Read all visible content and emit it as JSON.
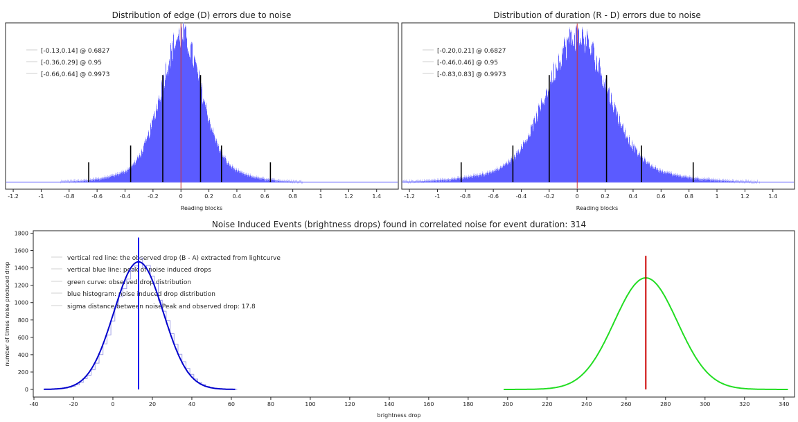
{
  "chart_data": [
    {
      "type": "histogram",
      "title": "Distribution of edge (D) errors due to noise",
      "xlabel": "Reading blocks",
      "ylabel": "",
      "xlim": [
        -1.25,
        1.55
      ],
      "xticks": [
        -1.2,
        -1,
        -0.8,
        -0.6,
        -0.4,
        -0.2,
        0,
        0.2,
        0.4,
        0.6,
        0.8,
        1,
        1.2,
        1.4
      ],
      "xtick_labels": [
        "-1.2",
        "-1",
        "-0.8",
        "-0.6",
        "-0.4",
        "-0.2",
        "0",
        "0.2",
        "0.4",
        "0.6",
        "0.8",
        "1",
        "1.2",
        "1.4"
      ],
      "histogram": {
        "center": 0.0,
        "sigma": 0.14,
        "color": "#5b5bff"
      },
      "zero_line": {
        "x": 0.0,
        "color": "#d03030"
      },
      "legend": [
        {
          "label": "[-0.13,0.14] @ 0.6827"
        },
        {
          "label": "[-0.36,0.29] @ 0.95"
        },
        {
          "label": "[-0.66,0.64] @ 0.9973"
        }
      ],
      "markers": [
        {
          "x": -0.13,
          "height": 0.7
        },
        {
          "x": 0.14,
          "height": 0.7
        },
        {
          "x": -0.36,
          "height": 0.24
        },
        {
          "x": 0.29,
          "height": 0.24
        },
        {
          "x": -0.66,
          "height": 0.13
        },
        {
          "x": 0.64,
          "height": 0.13
        }
      ]
    },
    {
      "type": "histogram",
      "title": "Distribution of duration (R - D) errors due to noise",
      "xlabel": "Reading blocks",
      "ylabel": "",
      "xlim": [
        -1.25,
        1.55
      ],
      "xticks": [
        -1.2,
        -1,
        -0.8,
        -0.6,
        -0.4,
        -0.2,
        0,
        0.2,
        0.4,
        0.6,
        0.8,
        1,
        1.2,
        1.4
      ],
      "xtick_labels": [
        "-1.2",
        "-1",
        "-0.8",
        "-0.6",
        "-0.4",
        "-0.2",
        "0",
        "0.2",
        "0.4",
        "0.6",
        "0.8",
        "1",
        "1.2",
        "1.4"
      ],
      "histogram": {
        "center": 0.0,
        "sigma": 0.21,
        "color": "#5b5bff"
      },
      "zero_line": {
        "x": 0.0,
        "color": "#d03030"
      },
      "legend": [
        {
          "label": "[-0.20,0.21] @ 0.6827"
        },
        {
          "label": "[-0.46,0.46] @ 0.95"
        },
        {
          "label": "[-0.83,0.83] @ 0.9973"
        }
      ],
      "markers": [
        {
          "x": -0.2,
          "height": 0.7
        },
        {
          "x": 0.21,
          "height": 0.7
        },
        {
          "x": -0.46,
          "height": 0.24
        },
        {
          "x": 0.46,
          "height": 0.24
        },
        {
          "x": -0.83,
          "height": 0.13
        },
        {
          "x": 0.83,
          "height": 0.13
        }
      ]
    },
    {
      "type": "line",
      "title": "Noise Induced Events (brightness drops) found in correlated noise for event duration: 314",
      "xlabel": "brightness drop",
      "ylabel": "number of times noise produced drop",
      "xlim": [
        -40,
        345
      ],
      "ylim": [
        -80,
        1820
      ],
      "xticks": [
        -40,
        -20,
        0,
        20,
        40,
        60,
        80,
        100,
        120,
        140,
        160,
        180,
        200,
        220,
        240,
        260,
        280,
        300,
        320,
        340
      ],
      "xtick_labels": [
        "-40",
        "-20",
        "0",
        "20",
        "40",
        "60",
        "80",
        "100",
        "120",
        "140",
        "160",
        "180",
        "200",
        "220",
        "240",
        "260",
        "280",
        "300",
        "320",
        "340"
      ],
      "yticks": [
        0,
        200,
        400,
        600,
        800,
        1000,
        1200,
        1400,
        1600,
        1800
      ],
      "ytick_labels": [
        "0",
        "200",
        "400",
        "600",
        "800",
        "1000",
        "1200",
        "1400",
        "1600",
        "1800"
      ],
      "series": [
        {
          "name": "blue histogram: noise induced drop distribution",
          "kind": "noise_histogram",
          "center": 13,
          "sigma": 12.5,
          "peak": 1470,
          "x_range": [
            -35,
            62
          ],
          "color": "#0000cc"
        },
        {
          "name": "green curve: observed drop distribution",
          "kind": "gaussian",
          "center": 270,
          "sigma": 16,
          "peak": 1285,
          "x_range": [
            198,
            342
          ],
          "color": "#22dd22"
        }
      ],
      "vlines": [
        {
          "name": "vertical blue line: peak of noise induced drops",
          "x": 13,
          "y_top": 1750,
          "color": "#0000ee"
        },
        {
          "name": "vertical red line: the observed drop (B - A) extracted from lightcurve",
          "x": 270,
          "y_top": 1540,
          "color": "#cc0000"
        }
      ],
      "legend": [
        {
          "label": "vertical red line: the observed drop (B - A) extracted from lightcurve"
        },
        {
          "label": "vertical blue line: peak of noise induced drops"
        },
        {
          "label": "green curve: observed drop distribution"
        },
        {
          "label": "blue histogram: noise induced drop distribution"
        },
        {
          "label": "sigma distance between noisePeak and observed drop: 17.8"
        }
      ]
    }
  ]
}
